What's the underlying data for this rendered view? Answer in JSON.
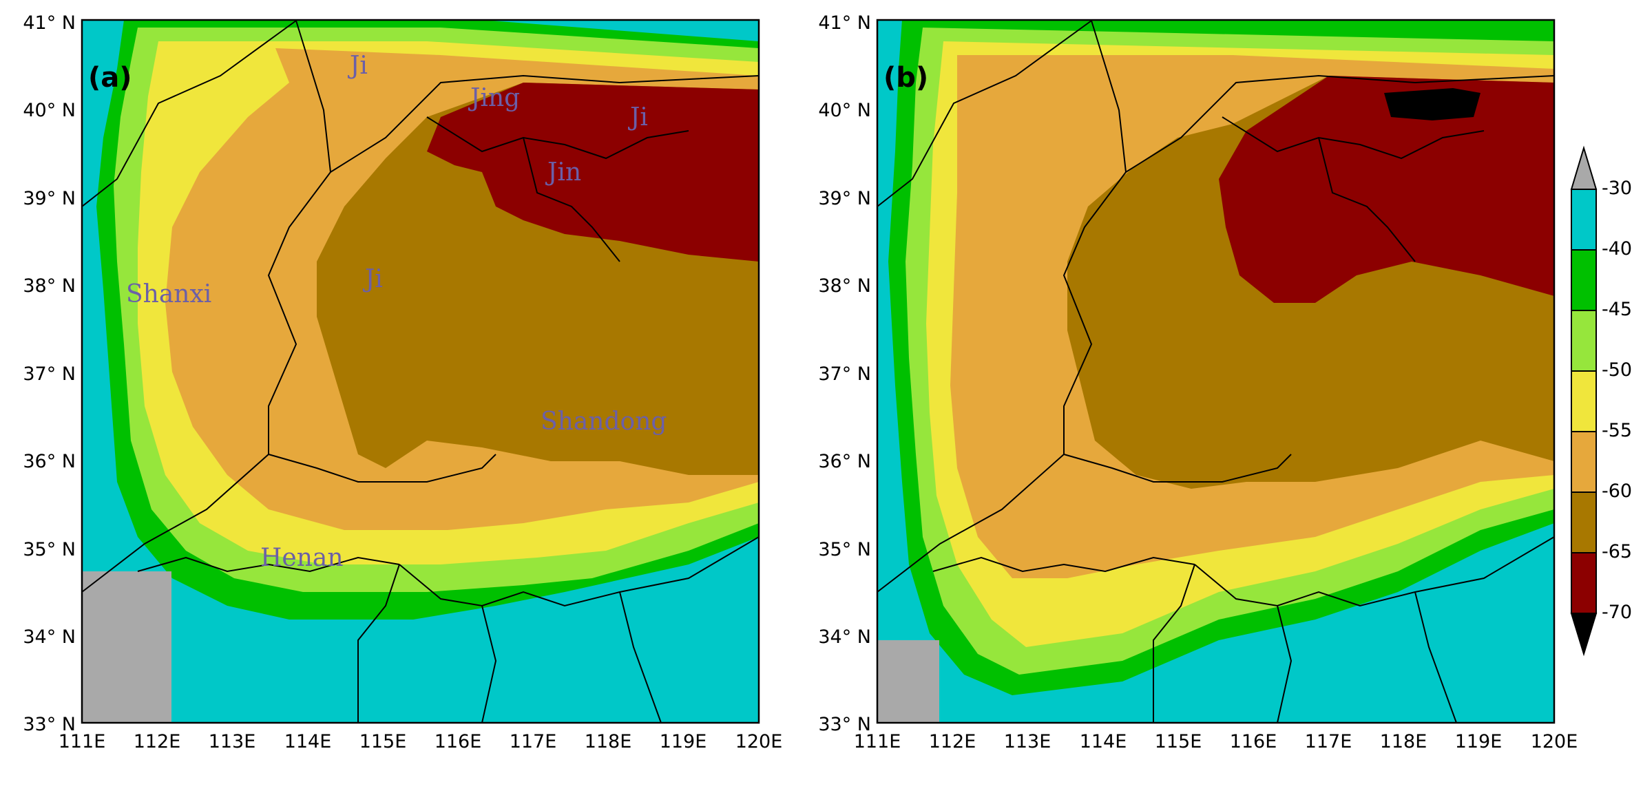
{
  "panels": [
    {
      "tag": "(a)",
      "regions": {
        "ji_north": "Ji",
        "jing": "Jing",
        "ji_ne": "Ji",
        "jin": "Jin",
        "ji": "Ji",
        "shanxi": "Shanxi",
        "shandong": "Shandong",
        "henan": "Henan"
      }
    },
    {
      "tag": "(b)",
      "regions": {}
    }
  ],
  "axes": {
    "lat_labels": [
      "41° N",
      "40° N",
      "39° N",
      "38° N",
      "37° N",
      "36° N",
      "35° N",
      "34° N",
      "33° N"
    ],
    "lon_labels": [
      "111E",
      "112E",
      "113E",
      "114E",
      "115E",
      "116E",
      "117E",
      "118E",
      "119E",
      "120E"
    ],
    "lat_range": [
      33,
      41
    ],
    "lon_range": [
      111,
      120
    ]
  },
  "colorbar": {
    "levels": [
      "-30",
      "-40",
      "-45",
      "-50",
      "-55",
      "-60",
      "-65",
      "-70"
    ],
    "colors": [
      "#a9a9a9",
      "#00c8c8",
      "#00c000",
      "#96e63c",
      "#f0e63c",
      "#e6a83c",
      "#a87800",
      "#8c0000",
      "#000000"
    ]
  }
}
